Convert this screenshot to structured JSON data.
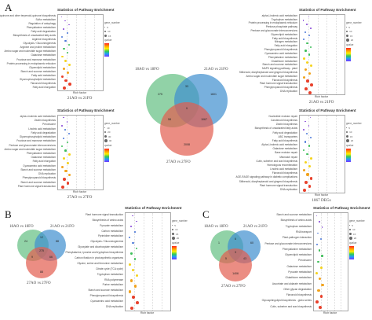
{
  "panels": {
    "A": "A",
    "B": "B",
    "C": "C"
  },
  "common": {
    "xlabel": "Rich factor",
    "legend_gene_number": "gene_number",
    "legend_qvalue": "qvalue"
  },
  "colors": {
    "venn_green": "#6cc38a",
    "venn_blue": "#3e8ecf",
    "venn_red": "#e35d4e",
    "point_red": "#e8402b",
    "point_orange": "#f2a21c",
    "point_blue": "#4b78d8",
    "point_purple": "#8a4bd8"
  },
  "plots": [
    {
      "id": "a1",
      "title": "Statistics of Pathway Enrichment",
      "caption": "21AO vs 21FO",
      "rows": [
        "Ubiquinone and other terpenoid-quinone biosynthesis",
        "Sulfur metabolism",
        "Regulation of autophagy",
        "Phenylalanine metabolism",
        "Fatty acid degradation",
        "Biosynthesis of unsaturated fatty acids",
        "Arginine biosynthesis",
        "Glycolysis / Gluconeogenesis",
        "Arginine and proline metabolism",
        "Amino sugar and nucleotide sugar metabolism",
        "Galactose metabolism",
        "Fructose and mannose metabolism",
        "Protein processing in endoplasmic reticulum",
        "Glycerolipid metabolism",
        "Starch and sucrose metabolism",
        "Fatty acid metabolism",
        "Glycerophospholipid metabolism",
        "Flavonoid biosynthesis",
        "Fatty acid elongation"
      ],
      "legend_sizes": [
        "5",
        "10",
        "15"
      ]
    },
    {
      "id": "a2",
      "title": "Statistics of Pathway Enrichment",
      "caption": "21AO vs 21FO",
      "rows": [
        "alpha-Linolenic acid metabolism",
        "Tryptophan metabolism",
        "Protein processing in endoplasmic reticulum",
        "Pentose phosphate pathway",
        "Pentose and glucuronate interconversions",
        "Glycerolipid metabolism",
        "Fatty acid biosynthesis",
        "Nitrogen metabolism",
        "Fatty acid elongation",
        "Phenylpropanoid biosynthesis",
        "Cyanoamino acid metabolism",
        "Phenylalanine metabolism",
        "Glutathione metabolism",
        "Starch and sucrose metabolism",
        "MAPK signaling pathway - plant",
        "Stilbenoid, diarylheptanoid and gingerol biosynthesis",
        "Amino sugar and nucleotide sugar metabolism",
        "Flavonoid biosynthesis",
        "Plant hormone signal transduction",
        "Phenylpropanoid biosynthesis",
        "DNA replication"
      ],
      "legend_sizes": [
        "5",
        "10",
        "15",
        "20"
      ]
    },
    {
      "id": "a3",
      "title": "Statistics of Pathway Enrichment",
      "caption": "27AO vs 27FO",
      "rows": [
        "alpha-Linolenic acid metabolism",
        "Zeatin biosynthesis",
        "Peroxisome",
        "Linoleic acid metabolism",
        "Fatty acid degradation",
        "Glycerophospholipid metabolism",
        "Fructose and mannose metabolism",
        "Pentose and glucuronate interconversions",
        "Amino sugar and nucleotide sugar metabolism",
        "Phenylalanine metabolism",
        "Galactose metabolism",
        "Fatty acid elongation",
        "Cyanoamino acid metabolism",
        "Starch and sucrose metabolism",
        "DNA replication",
        "Phenylpropanoid biosynthesis",
        "Starch and sucrose metabolism",
        "Plant hormone signal transduction"
      ],
      "legend_sizes": [
        "10",
        "20",
        "30",
        "40"
      ]
    },
    {
      "id": "a4",
      "title": "Statistics of Pathway Enrichment",
      "caption": "1067 DEGs",
      "rows": [
        "Nucleotide excision repair",
        "Carotenoid biosynthesis",
        "Zeatin biosynthesis",
        "Biosynthesis of unsaturated fatty acids",
        "Fatty acid degradation",
        "ABC transporters",
        "Fatty acid biosynthesis",
        "Alpha-Linolenic acid metabolism",
        "Galactose metabolism",
        "Base excision repair",
        "Mismatch repair",
        "Cutin, suberine and wax biosynthesis",
        "Homologous recombination",
        "Linoleic acid metabolism",
        "Flavonoid biosynthesis",
        "AGE-RAGE signaling pathway in diabetic complications",
        "Stilbenoid, diarylheptanoid and gingerol biosynthesis",
        "Plant hormone signal transduction",
        "DNA replication"
      ],
      "legend_sizes": [
        "5",
        "10",
        "15",
        "20"
      ]
    },
    {
      "id": "b1",
      "title": "Statistics of Pathway Enrichment",
      "caption": "",
      "rows": [
        "Plant hormone signal transduction",
        "Biosynthesis of amino acids",
        "Pyruvate metabolism",
        "Carbon metabolism",
        "Pyrimidine metabolism",
        "Glycolysis / Gluconeogenesis",
        "Glyoxylate and dicarboxylate metabolism",
        "Phenylalanine, tyrosine and tryptophan biosynthesis",
        "Carbon fixation in photosynthetic organisms",
        "Glycine, serine and threonine metabolism",
        "Citrate cycle (TCA cycle)",
        "Tryptophan metabolism",
        "RNA polymerase",
        "Purine metabolism",
        "Starch and sucrose metabolism",
        "Phenylpropanoid biosynthesis",
        "Cyanoamino acid metabolism",
        "DNA replication"
      ],
      "legend_sizes": [
        "5",
        "10",
        "15",
        "20"
      ]
    },
    {
      "id": "c1",
      "title": "Statistics of Pathway Enrichment",
      "caption": "",
      "rows": [
        "Starch and sucrose metabolism",
        "Biosynthesis of amino acids",
        "Tryptophan metabolism",
        "RNA transport",
        "Plant-pathogen interaction",
        "Pentose and glucuronate interconversions",
        "Phenylalanine metabolism",
        "Glycerolipid metabolism",
        "Peroxisome",
        "Galactose metabolism",
        "Pyruvate metabolism",
        "Glutathione metabolism",
        "Ascorbate and aldarate metabolism",
        "Other glycan degradation",
        "Flavonoid biosynthesis",
        "Glycosphingolipid biosynthesis - globo series",
        "Cutin, suberine and wax biosynthesis"
      ],
      "legend_sizes": [
        "5",
        "10",
        "15",
        "20"
      ]
    }
  ],
  "venns": {
    "main": {
      "set_a": "18AO vs 18FO",
      "set_b": "21AO vs 21FO",
      "set_c": "27AO vs 27FO",
      "n_a": "275",
      "n_b": "1601",
      "n_c": "2008",
      "n_ab": "33",
      "n_ac": "58",
      "n_bc": "1067",
      "n_abc": "9"
    },
    "b": {
      "set_a": "18AO vs 18FO",
      "set_b": "21AO vs 21FO",
      "set_c": "27AO vs 27FO",
      "n_a": "24",
      "n_b": "88",
      "n_c": "88",
      "n_ab": "12",
      "n_ac": "9",
      "n_bc": "66",
      "n_abc": "275"
    },
    "c": {
      "set_a": "18AO vs 18FO",
      "set_b": "21AO vs 21FO",
      "set_c": "27AO vs 27FO",
      "n_a": "1",
      "n_b": "60",
      "n_c": "51",
      "n_ab": "6",
      "n_ac": "5",
      "n_bc": "43",
      "n_abc": "3",
      "n_c_only": "1406"
    }
  }
}
